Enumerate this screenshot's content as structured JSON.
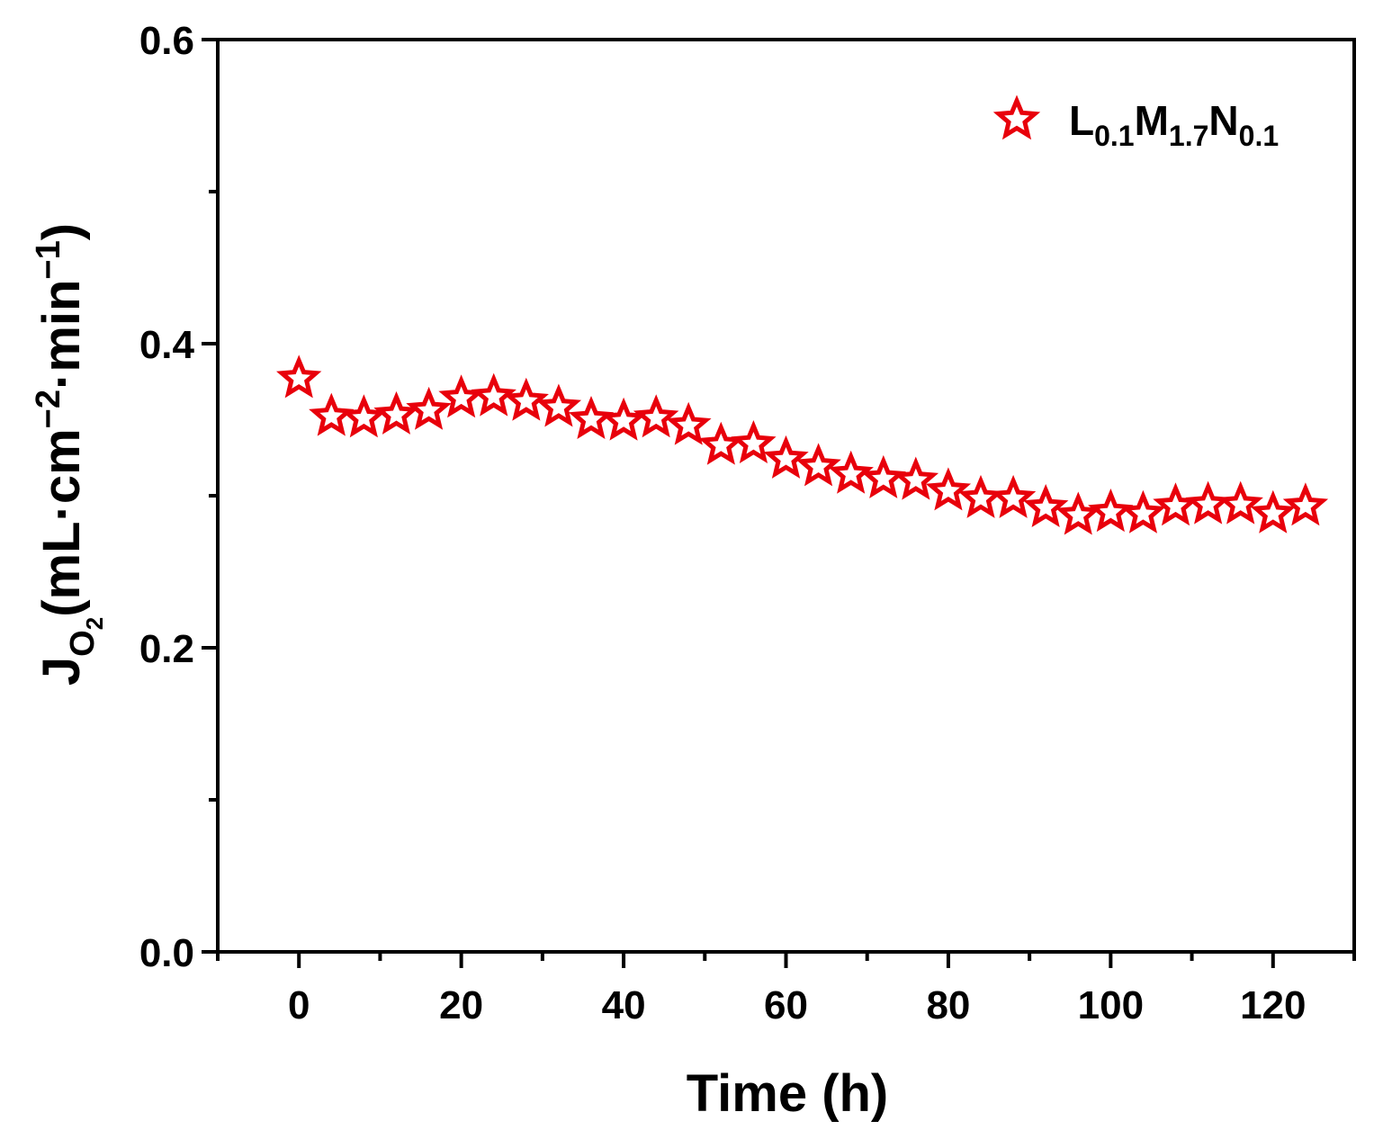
{
  "chart_data": {
    "type": "scatter",
    "title": "",
    "xlabel": "Time (h)",
    "ylabel": {
      "base": "J",
      "sub": "O",
      "subsub": "2",
      "paren_open": "(mL·cm",
      "exp1": "−2",
      "mid": "·min",
      "exp2": "−1",
      "paren_close": ")"
    },
    "xlim": [
      -10,
      130
    ],
    "ylim": [
      0.0,
      0.6
    ],
    "xticks": [
      0,
      20,
      40,
      60,
      80,
      100,
      120
    ],
    "xtick_labels": [
      "0",
      "20",
      "40",
      "60",
      "80",
      "100",
      "120"
    ],
    "yticks": [
      0.0,
      0.2,
      0.4,
      0.6
    ],
    "ytick_labels": [
      "0.0",
      "0.2",
      "0.4",
      "0.6"
    ],
    "grid": false,
    "legend_position": "top-right",
    "series": [
      {
        "name": "L0.1M1.7N0.1",
        "legend_parts": [
          "L",
          "0.1",
          "M",
          "1.7",
          "N",
          "0.1"
        ],
        "marker": "open-star",
        "color": "#e8000b",
        "x": [
          0,
          4,
          8,
          12,
          16,
          20,
          24,
          28,
          32,
          36,
          40,
          44,
          48,
          52,
          56,
          60,
          64,
          68,
          72,
          76,
          80,
          84,
          88,
          92,
          96,
          100,
          104,
          108,
          112,
          116,
          120,
          124
        ],
        "values": [
          0.377,
          0.352,
          0.351,
          0.353,
          0.356,
          0.364,
          0.365,
          0.362,
          0.358,
          0.35,
          0.349,
          0.351,
          0.346,
          0.333,
          0.334,
          0.324,
          0.319,
          0.314,
          0.311,
          0.31,
          0.303,
          0.298,
          0.298,
          0.292,
          0.287,
          0.289,
          0.288,
          0.293,
          0.294,
          0.294,
          0.288,
          0.293
        ]
      }
    ]
  }
}
